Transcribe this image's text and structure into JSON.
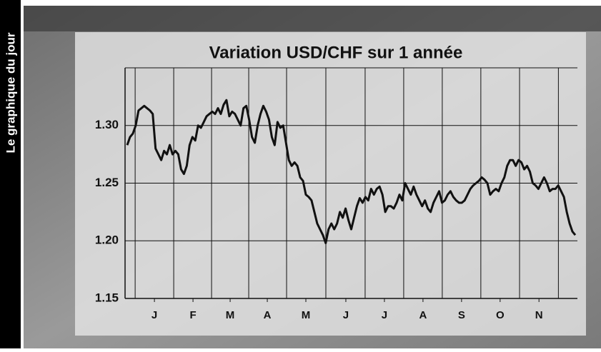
{
  "sidebar_label": "Le graphique du jour",
  "chart_data": {
    "type": "line",
    "title": "Variation USD/CHF sur 1 année",
    "color": "#111111",
    "grid": true,
    "values": [
      1.283,
      1.29,
      1.293,
      1.3,
      1.313,
      1.315,
      1.317,
      1.315,
      1.313,
      1.31,
      1.28,
      1.275,
      1.27,
      1.278,
      1.275,
      1.283,
      1.275,
      1.278,
      1.275,
      1.262,
      1.258,
      1.265,
      1.283,
      1.29,
      1.287,
      1.3,
      1.298,
      1.303,
      1.308,
      1.31,
      1.312,
      1.31,
      1.315,
      1.31,
      1.318,
      1.322,
      1.308,
      1.312,
      1.31,
      1.305,
      1.3,
      1.315,
      1.317,
      1.305,
      1.29,
      1.285,
      1.3,
      1.31,
      1.317,
      1.312,
      1.305,
      1.29,
      1.283,
      1.303,
      1.298,
      1.3,
      1.285,
      1.27,
      1.265,
      1.268,
      1.265,
      1.255,
      1.252,
      1.24,
      1.238,
      1.235,
      1.225,
      1.215,
      1.21,
      1.205,
      1.198,
      1.21,
      1.215,
      1.21,
      1.215,
      1.225,
      1.22,
      1.228,
      1.218,
      1.21,
      1.22,
      1.23,
      1.237,
      1.233,
      1.238,
      1.235,
      1.245,
      1.24,
      1.245,
      1.247,
      1.24,
      1.225,
      1.23,
      1.23,
      1.228,
      1.233,
      1.24,
      1.235,
      1.25,
      1.245,
      1.24,
      1.247,
      1.24,
      1.235,
      1.23,
      1.235,
      1.228,
      1.225,
      1.233,
      1.238,
      1.243,
      1.233,
      1.235,
      1.24,
      1.243,
      1.238,
      1.235,
      1.233,
      1.233,
      1.235,
      1.24,
      1.245,
      1.248,
      1.25,
      1.252,
      1.255,
      1.253,
      1.25,
      1.24,
      1.243,
      1.245,
      1.243,
      1.25,
      1.255,
      1.265,
      1.27,
      1.27,
      1.265,
      1.27,
      1.268,
      1.262,
      1.265,
      1.26,
      1.25,
      1.248,
      1.245,
      1.25,
      1.255,
      1.25,
      1.243,
      1.245,
      1.245,
      1.248,
      1.243,
      1.238,
      1.225,
      1.215,
      1.208,
      1.205
    ],
    "xlim": [
      0,
      158
    ],
    "xticks": [
      {
        "value": 9.6,
        "label": "J"
      },
      {
        "value": 23.2,
        "label": "F"
      },
      {
        "value": 36.3,
        "label": "M"
      },
      {
        "value": 49.4,
        "label": "A"
      },
      {
        "value": 63,
        "label": "M"
      },
      {
        "value": 77.1,
        "label": "J"
      },
      {
        "value": 90.7,
        "label": "J"
      },
      {
        "value": 104.3,
        "label": "A"
      },
      {
        "value": 117.9,
        "label": "S"
      },
      {
        "value": 131.5,
        "label": "O"
      },
      {
        "value": 145.2,
        "label": "N"
      }
    ],
    "ylim": [
      1.15,
      1.35
    ],
    "yticks": [
      {
        "value": 1.15,
        "label": "1.15"
      },
      {
        "value": 1.2,
        "label": "1.20"
      },
      {
        "value": 1.25,
        "label": "1.25"
      },
      {
        "value": 1.3,
        "label": "1.30"
      }
    ]
  }
}
